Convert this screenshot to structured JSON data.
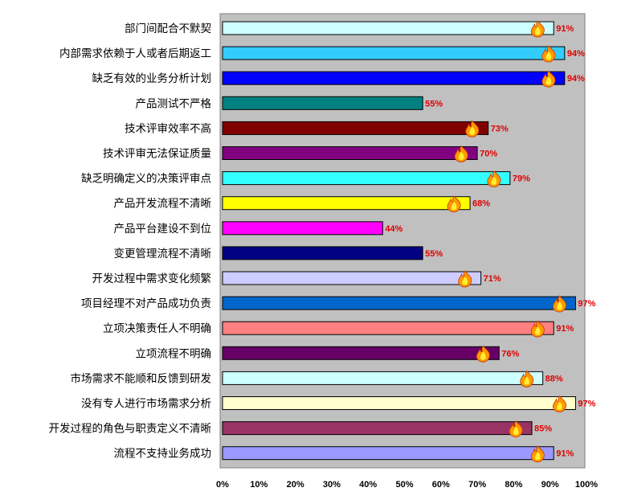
{
  "chart_data": {
    "type": "bar",
    "orientation": "horizontal",
    "categories": [
      "部门间配合不默契",
      "内部需求依赖于人或者后期返工",
      "缺乏有效的业务分析计划",
      "产品测试不严格",
      "技术评审效率不高",
      "技术评审无法保证质量",
      "缺乏明确定义的决策评审点",
      "产品开发流程不清晰",
      "产品平台建设不到位",
      "变更管理流程不清晰",
      "开发过程中需求变化频繁",
      "项目经理不对产品成功负责",
      "立项决策责任人不明确",
      "立项流程不明确",
      "市场需求不能顺和反馈到研发",
      "没有专人进行市场需求分析",
      "开发过程的角色与职责定义不清晰",
      "流程不支持业务成功"
    ],
    "values": [
      91,
      94,
      94,
      55,
      73,
      70,
      79,
      68,
      44,
      55,
      71,
      97,
      91,
      76,
      88,
      97,
      85,
      91
    ],
    "value_labels": [
      "91%",
      "94%",
      "94%",
      "55%",
      "73%",
      "70%",
      "79%",
      "68%",
      "44%",
      "55%",
      "71%",
      "97%",
      "91%",
      "76%",
      "88%",
      "97%",
      "85%",
      "91%"
    ],
    "bar_colors": [
      "#ccffff",
      "#33ccff",
      "#0000ff",
      "#008080",
      "#800000",
      "#800080",
      "#33ffff",
      "#ffff00",
      "#ff00ff",
      "#000080",
      "#ccccff",
      "#0066cc",
      "#ff8080",
      "#660066",
      "#ccffff",
      "#ffffcc",
      "#993366",
      "#9999ff"
    ],
    "flame_icon": [
      true,
      true,
      true,
      false,
      true,
      true,
      true,
      true,
      false,
      false,
      true,
      true,
      true,
      true,
      true,
      true,
      true,
      true
    ],
    "x_ticks": [
      "0%",
      "10%",
      "20%",
      "30%",
      "40%",
      "50%",
      "60%",
      "70%",
      "80%",
      "90%",
      "100%"
    ],
    "xlim": [
      0,
      100
    ],
    "plot_background": "#c0c0c0",
    "value_label_color": "#e00000",
    "grid": false,
    "title": "",
    "xlabel": "",
    "ylabel": ""
  }
}
